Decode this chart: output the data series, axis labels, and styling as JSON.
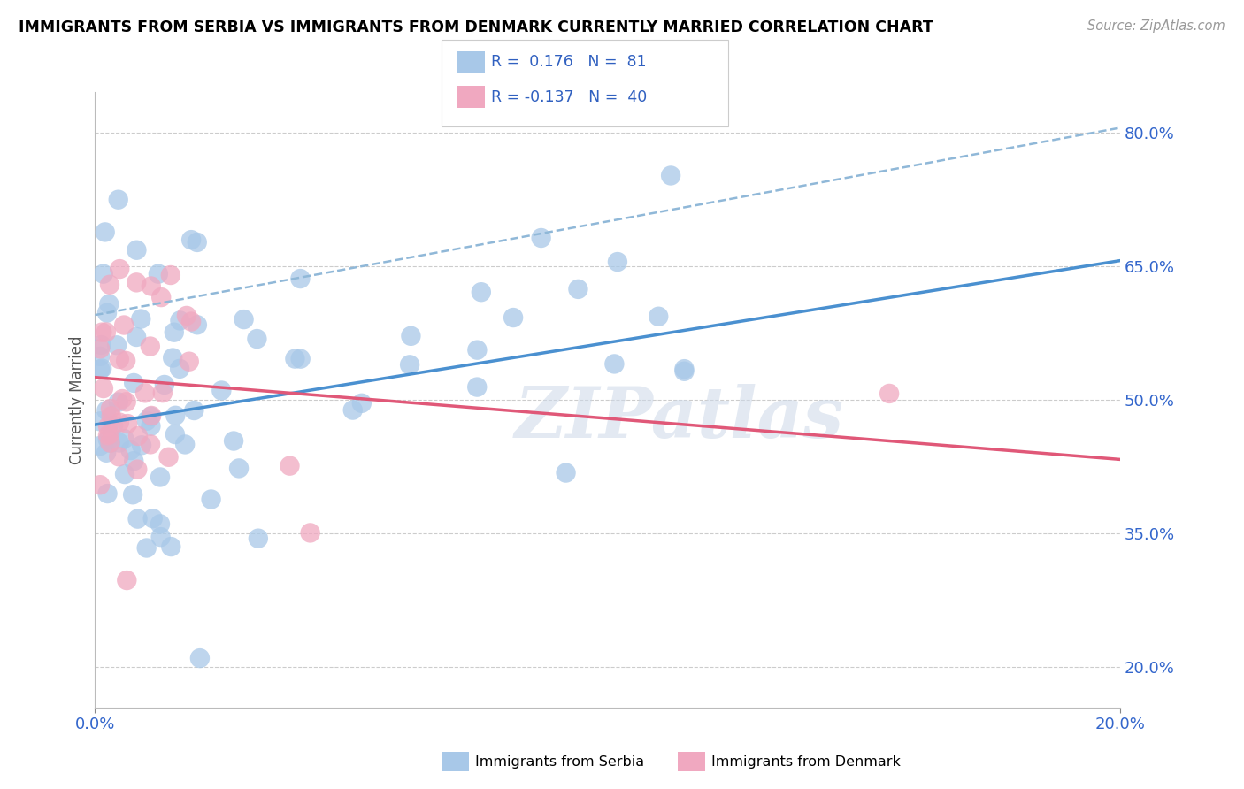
{
  "title": "IMMIGRANTS FROM SERBIA VS IMMIGRANTS FROM DENMARK CURRENTLY MARRIED CORRELATION CHART",
  "source": "Source: ZipAtlas.com",
  "ylabel": "Currently Married",
  "ylabel_ticks": [
    "20.0%",
    "35.0%",
    "50.0%",
    "65.0%",
    "80.0%"
  ],
  "ylabel_tick_vals": [
    0.2,
    0.35,
    0.5,
    0.65,
    0.8
  ],
  "xmin": 0.0,
  "xmax": 0.2,
  "ymin": 0.155,
  "ymax": 0.845,
  "R_serbia": 0.176,
  "N_serbia": 81,
  "R_denmark": -0.137,
  "N_denmark": 40,
  "color_serbia": "#a8c8e8",
  "color_denmark": "#f0a8c0",
  "line_serbia": "#4a90d0",
  "line_denmark": "#e05878",
  "line_dashed": "#90b8d8",
  "legend_text_color": "#3060c0",
  "watermark": "ZIPatlas",
  "serbia_intercept": 0.472,
  "serbia_slope": 0.92,
  "denmark_intercept": 0.525,
  "denmark_slope": -0.46,
  "dashed_intercept": 0.595,
  "dashed_slope": 1.05
}
